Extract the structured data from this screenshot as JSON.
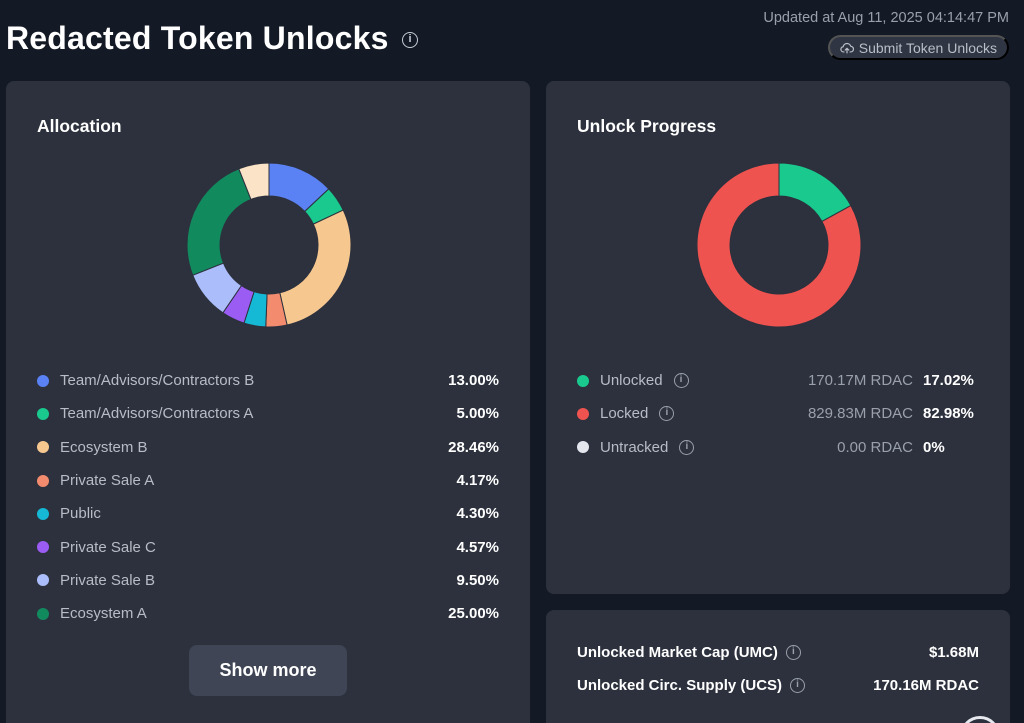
{
  "header": {
    "title": "Redacted Token Unlocks",
    "updated": "Updated at Aug 11, 2025 04:14:47 PM",
    "submit_label": "Submit Token Unlocks"
  },
  "allocation": {
    "title": "Allocation",
    "show_more_label": "Show more",
    "items": [
      {
        "label": "Team/Advisors/Contractors B",
        "value": "13.00%",
        "pct": 13.0,
        "color": "#5b82f5"
      },
      {
        "label": "Team/Advisors/Contractors A",
        "value": "5.00%",
        "pct": 5.0,
        "color": "#19c98e"
      },
      {
        "label": "Ecosystem B",
        "value": "28.46%",
        "pct": 28.46,
        "color": "#f7c790"
      },
      {
        "label": "Private Sale A",
        "value": "4.17%",
        "pct": 4.17,
        "color": "#f38b6e"
      },
      {
        "label": "Public",
        "value": "4.30%",
        "pct": 4.3,
        "color": "#15b9d6"
      },
      {
        "label": "Private Sale C",
        "value": "4.57%",
        "pct": 4.57,
        "color": "#9b5cf4"
      },
      {
        "label": "Private Sale B",
        "value": "9.50%",
        "pct": 9.5,
        "color": "#abbdfa"
      },
      {
        "label": "Ecosystem A",
        "value": "25.00%",
        "pct": 25.0,
        "color": "#118a5e"
      }
    ],
    "extra_segments": [
      {
        "pct": 6.0,
        "color": "#fbe3c7"
      }
    ]
  },
  "unlock_progress": {
    "title": "Unlock Progress",
    "items": [
      {
        "label": "Unlocked",
        "amount": "170.17M RDAC",
        "value": "17.02%",
        "pct": 17.02,
        "color": "#19c98e"
      },
      {
        "label": "Locked",
        "amount": "829.83M RDAC",
        "value": "82.98%",
        "pct": 82.98,
        "color": "#ef5350"
      },
      {
        "label": "Untracked",
        "amount": "0.00 RDAC",
        "value": "0%",
        "pct": 0,
        "color": "#e4e7ee"
      }
    ]
  },
  "market": {
    "rows": [
      {
        "label": "Unlocked Market Cap (UMC)",
        "value": "$1.68M"
      },
      {
        "label": "Unlocked Circ. Supply (UCS)",
        "value": "170.16M RDAC"
      }
    ]
  },
  "icons": {
    "info": "info-icon",
    "upload": "cloud-upload-icon"
  }
}
